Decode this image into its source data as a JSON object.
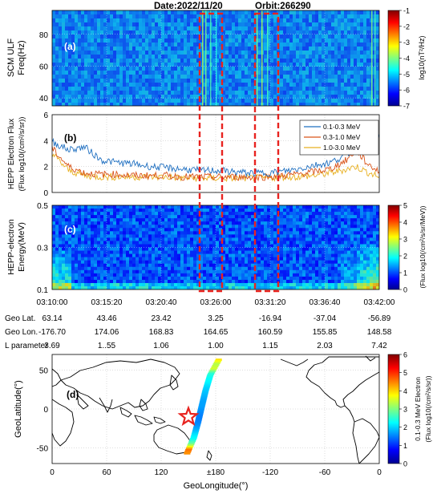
{
  "header": {
    "date": "Date:2022/11/20",
    "orbit": "Orbit:266290"
  },
  "chart_data": [
    {
      "id": "scm",
      "type": "heatmap",
      "panel_label": "(a)",
      "ylabel_lines": [
        "SCM ULF",
        "Freq(Hz)"
      ],
      "yticks": [
        "40",
        "60",
        "80"
      ],
      "ylim": [
        35,
        95
      ],
      "colorbar": {
        "ticks": [
          "-1",
          "-2",
          "-3",
          "-4",
          "-5",
          "-6",
          "-7"
        ],
        "label": "log10(nT²/Hz)",
        "range": [
          -7,
          -1
        ]
      }
    },
    {
      "id": "flux",
      "type": "line",
      "panel_label": "(b)",
      "ylabel_lines": [
        "HEPP Electron Flux",
        "(Flux log10(/cm²/s/sr))"
      ],
      "yticks": [
        "0",
        "2",
        "4",
        "6"
      ],
      "ylim": [
        0,
        6
      ],
      "legend_position": "top-right",
      "x": [
        0,
        0.05,
        0.1,
        0.15,
        0.2,
        0.25,
        0.3,
        0.35,
        0.4,
        0.45,
        0.5,
        0.55,
        0.6,
        0.65,
        0.7,
        0.75,
        0.8,
        0.85,
        0.9,
        0.93,
        0.96,
        1.0
      ],
      "series": [
        {
          "name": "0.1-0.3 MeV",
          "color": "#1f6fc0",
          "values": [
            3.9,
            3.3,
            3.5,
            2.5,
            2.3,
            2.2,
            2.0,
            1.9,
            1.8,
            1.7,
            1.7,
            1.6,
            1.5,
            1.5,
            1.6,
            1.8,
            2.1,
            2.3,
            2.9,
            3.6,
            4.6,
            4.4
          ]
        },
        {
          "name": "0.3-1.0 MeV",
          "color": "#d95319",
          "values": [
            3.4,
            2.0,
            1.5,
            1.4,
            1.4,
            1.3,
            1.3,
            1.3,
            1.2,
            1.2,
            1.2,
            1.2,
            1.2,
            1.2,
            1.3,
            1.4,
            1.6,
            1.8,
            2.5,
            3.3,
            2.3,
            1.6
          ]
        },
        {
          "name": "1.0-3.0 MeV",
          "color": "#e8b020",
          "values": [
            3.0,
            1.7,
            1.3,
            1.2,
            1.2,
            1.2,
            1.2,
            1.2,
            1.1,
            1.1,
            1.1,
            1.1,
            1.1,
            1.1,
            1.2,
            1.2,
            1.3,
            1.5,
            1.8,
            2.0,
            1.6,
            1.2
          ]
        }
      ]
    },
    {
      "id": "energy",
      "type": "heatmap",
      "panel_label": "(c)",
      "ylabel_lines": [
        "HEPP-electron",
        "Energy(MeV)"
      ],
      "yticks": [
        "0.1",
        "0.3",
        "0.5"
      ],
      "ylim": [
        0.1,
        0.5
      ],
      "colorbar": {
        "ticks": [
          "5",
          "4",
          "3",
          "2",
          "1",
          "0"
        ],
        "label": "(Flux log10(/cm²/s/sr/MeV))",
        "range": [
          0,
          5
        ]
      }
    },
    {
      "id": "map",
      "type": "scatter",
      "panel_label": "(d)",
      "xlabel": "GeoLongitude(°)",
      "ylabel": "GeoLatitude(°)",
      "xticks": [
        "0",
        "60",
        "120",
        "±180",
        "-120",
        "-60",
        "0"
      ],
      "yticks": [
        "50",
        "0",
        "-50"
      ],
      "star_position": "geo lon 150°, geo lat -10°",
      "colorbar": {
        "ticks": [
          "6",
          "5",
          "4",
          "3",
          "2",
          "1",
          "0"
        ],
        "label_lines": [
          "0.1-0.3 MeV Electron",
          "(Flux log10(/cm²/s/sr))"
        ],
        "range": [
          0,
          6
        ]
      }
    }
  ],
  "time_axis": {
    "ticks": [
      "03:10:00",
      "03:15:20",
      "03:20:40",
      "03:26:00",
      "03:31:20",
      "03:36:40",
      "03:42:00"
    ]
  },
  "orbit_table": {
    "rows": [
      {
        "label": "Geo Lat.",
        "values": [
          "63.14",
          "43.46",
          "23.42",
          "3.25",
          "-16.94",
          "-37.04",
          "-56.89"
        ]
      },
      {
        "label": "Geo Lon.",
        "values": [
          "-176.70",
          "174.06",
          "168.83",
          "164.65",
          "160.59",
          "155.85",
          "148.58"
        ]
      },
      {
        "label": "L parameter",
        "values": [
          "3.69",
          "1..55",
          "1.06",
          "1.00",
          "1.15",
          "2.03",
          "7.42"
        ]
      }
    ]
  },
  "colors": {
    "highlight_box": "#e8231f",
    "star": "#e8231f"
  }
}
